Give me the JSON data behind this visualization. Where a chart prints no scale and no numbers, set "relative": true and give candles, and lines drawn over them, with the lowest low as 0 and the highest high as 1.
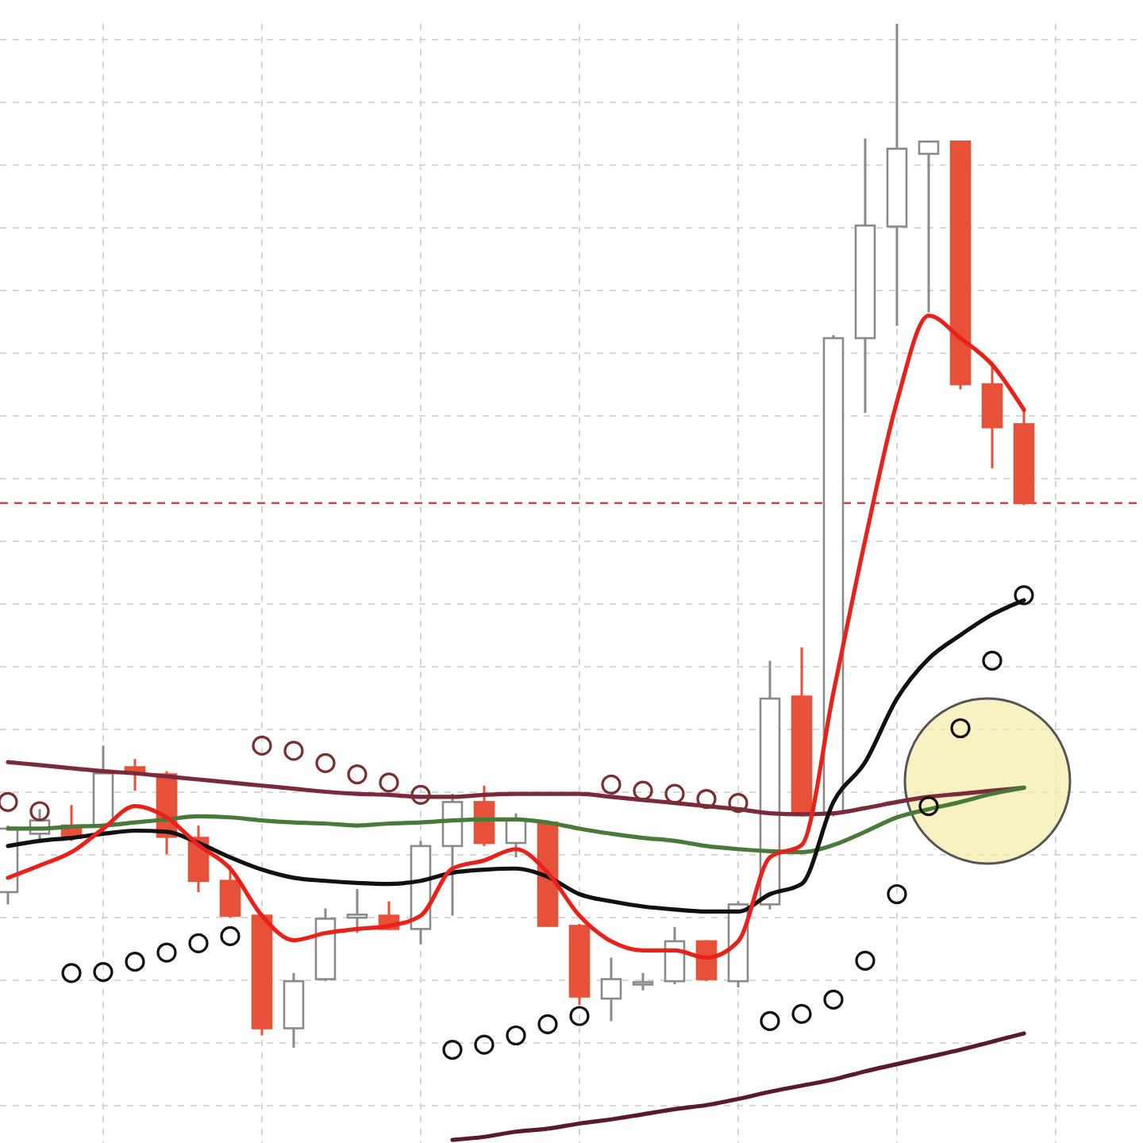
{
  "chart_data": {
    "type": "candlestick",
    "relative": true,
    "grid": true,
    "categories": [
      null,
      null,
      null,
      null,
      null,
      null,
      null,
      null,
      null,
      null,
      null,
      null,
      null,
      null,
      null,
      null,
      null,
      null,
      null,
      null,
      null,
      null,
      null,
      null,
      null,
      null,
      null,
      null,
      null,
      null,
      null,
      null,
      null
    ],
    "ohlc": [
      [
        0.152,
        0.217,
        0.14,
        0.214
      ],
      [
        0.209,
        0.233,
        0.202,
        0.222
      ],
      [
        0.217,
        0.237,
        0.202,
        0.205
      ],
      [
        0.217,
        0.295,
        0.209,
        0.268
      ],
      [
        0.274,
        0.282,
        0.251,
        0.268
      ],
      [
        0.267,
        0.27,
        0.189,
        0.206
      ],
      [
        0.205,
        0.217,
        0.152,
        0.163
      ],
      [
        0.163,
        0.178,
        0.127,
        0.129
      ],
      [
        0.129,
        0.132,
        0.012,
        0.019
      ],
      [
        0.019,
        0.073,
        0,
        0.065
      ],
      [
        0.067,
        0.136,
        0.065,
        0.126
      ],
      [
        0.127,
        0.155,
        0.112,
        0.13
      ],
      [
        0.129,
        0.143,
        0.115,
        0.116
      ],
      [
        0.116,
        0.202,
        0.101,
        0.197
      ],
      [
        0.197,
        0.248,
        0.129,
        0.24
      ],
      [
        0.24,
        0.256,
        0.197,
        0.2
      ],
      [
        0.2,
        0.229,
        0.186,
        0.222
      ],
      [
        0.22,
        0.222,
        0.118,
        0.119
      ],
      [
        0.119,
        0.121,
        0.042,
        0.05
      ],
      [
        0.048,
        0.088,
        0.026,
        0.067
      ],
      [
        0.062,
        0.073,
        0.056,
        0.064
      ],
      [
        0.065,
        0.118,
        0.062,
        0.104
      ],
      [
        0.104,
        0.105,
        0.065,
        0.067
      ],
      [
        0.065,
        0.143,
        0.059,
        0.14
      ],
      [
        0.14,
        0.378,
        0.135,
        0.341
      ],
      [
        0.343,
        0.391,
        0.226,
        0.229
      ],
      [
        0.229,
        0.696,
        0.226,
        0.693
      ],
      [
        0.693,
        0.888,
        0.62,
        0.803
      ],
      [
        0.802,
        1,
        0.705,
        0.878
      ],
      [
        0.873,
        0.885,
        0.718,
        0.885
      ],
      [
        0.885,
        0.885,
        0.643,
        0.648
      ],
      [
        0.648,
        0.67,
        0.566,
        0.606
      ],
      [
        0.609,
        0.625,
        0.53,
        0.532
      ]
    ],
    "series": [
      {
        "type": "line",
        "color": "#7a2a3a",
        "values": [
          0.279,
          0.276,
          0.273,
          0.27,
          0.268,
          0.265,
          0.262,
          0.259,
          0.256,
          0.253,
          0.25,
          0.248,
          0.247,
          0.245,
          0.245,
          0.247,
          0.248,
          0.248,
          0.248,
          0.245,
          0.242,
          0.239,
          0.236,
          0.233,
          0.229,
          0.228,
          0.229,
          0.234,
          0.24,
          0.245,
          0.248,
          0.251,
          0.254
        ]
      },
      {
        "type": "line",
        "color": "#4a7a3a",
        "values": [
          0.214,
          0.214,
          0.216,
          0.217,
          0.22,
          0.223,
          0.226,
          0.225,
          0.222,
          0.22,
          0.219,
          0.217,
          0.219,
          0.22,
          0.222,
          0.223,
          0.223,
          0.22,
          0.214,
          0.209,
          0.205,
          0.202,
          0.197,
          0.194,
          0.192,
          0.191,
          0.198,
          0.211,
          0.225,
          0.233,
          0.24,
          0.248,
          0.254
        ]
      },
      {
        "type": "line",
        "color": "#111111",
        "values": [
          0.197,
          0.202,
          0.205,
          0.209,
          0.212,
          0.211,
          0.2,
          0.186,
          0.174,
          0.166,
          0.163,
          0.161,
          0.16,
          0.163,
          0.171,
          0.174,
          0.175,
          0.167,
          0.15,
          0.143,
          0.138,
          0.135,
          0.133,
          0.133,
          0.15,
          0.16,
          0.24,
          0.279,
          0.341,
          0.38,
          0.403,
          0.423,
          0.437
        ]
      },
      {
        "type": "line",
        "color": "#e8211a",
        "values": [
          0.166,
          0.178,
          0.191,
          0.214,
          0.236,
          0.225,
          0.198,
          0.175,
          0.129,
          0.105,
          0.112,
          0.116,
          0.119,
          0.129,
          0.175,
          0.183,
          0.194,
          0.171,
          0.129,
          0.104,
          0.095,
          0.095,
          0.088,
          0.104,
          0.186,
          0.198,
          0.347,
          0.496,
          0.631,
          0.715,
          0.693,
          0.667,
          0.623
        ]
      },
      {
        "type": "line",
        "color": "#5a1a2a",
        "values": [
          null,
          null,
          null,
          null,
          null,
          null,
          null,
          null,
          null,
          null,
          null,
          null,
          null,
          null,
          -0.09,
          -0.087,
          -0.082,
          -0.079,
          -0.074,
          -0.07,
          -0.065,
          -0.06,
          -0.056,
          -0.05,
          -0.043,
          -0.037,
          -0.031,
          -0.023,
          -0.016,
          -0.009,
          -0.002,
          0.006,
          0.014
        ]
      },
      {
        "type": "scatter",
        "marker": "circle",
        "colors": [
          "#7a3030",
          "#7a3030",
          "#111111",
          "#111111",
          "#111111",
          "#111111",
          "#111111",
          "#111111",
          "#7a3030",
          "#7a3030",
          "#7a3030",
          "#7a3030",
          "#7a3030",
          "#7a3030",
          "#111111",
          "#111111",
          "#111111",
          "#111111",
          "#111111",
          "#7a3030",
          "#7a3030",
          "#7a3030",
          "#7a3030",
          "#7a3030",
          "#111111",
          "#111111",
          "#111111",
          "#111111",
          "#111111",
          "#111111",
          "#111111",
          "#111111",
          "#111111"
        ],
        "values": [
          0.24,
          0.231,
          0.073,
          0.074,
          0.084,
          0.093,
          0.102,
          0.109,
          0.295,
          0.29,
          0.278,
          0.267,
          0.259,
          0.247,
          -0.002,
          0.003,
          0.012,
          0.023,
          0.031,
          0.257,
          0.251,
          0.248,
          0.243,
          0.239,
          0.026,
          0.033,
          0.047,
          0.085,
          0.15,
          0.236,
          0.312,
          0.378,
          0.442
        ]
      }
    ],
    "ref_lines": [
      {
        "axis": "y",
        "value": 0.532,
        "color": "#c0504d",
        "line_style": "dashed"
      }
    ]
  }
}
